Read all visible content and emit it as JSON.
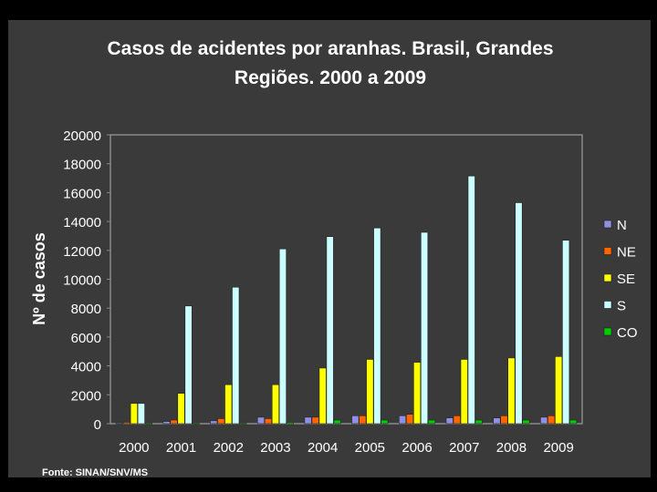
{
  "chart_data": {
    "type": "bar",
    "title_line1": "Casos de acidentes por aranhas. Brasil, Grandes",
    "title_line2": "Regiões. 2000 a 2009",
    "xlabel": "",
    "ylabel": "Nº de casos",
    "ylim": [
      0,
      20000
    ],
    "yticks": [
      "0",
      "2000",
      "4000",
      "6000",
      "8000",
      "10000",
      "12000",
      "14000",
      "16000",
      "18000",
      "20000"
    ],
    "grid": false,
    "legend_position": "right",
    "categories": [
      "2000",
      "2001",
      "2002",
      "2003",
      "2004",
      "2005",
      "2006",
      "2007",
      "2008",
      "2009"
    ],
    "series": [
      {
        "name": "N",
        "color": "#8f8fe6",
        "values": [
          50,
          150,
          200,
          450,
          450,
          550,
          550,
          400,
          400,
          450
        ]
      },
      {
        "name": "NE",
        "color": "#ff6600",
        "values": [
          100,
          250,
          350,
          350,
          450,
          550,
          650,
          550,
          550,
          550
        ]
      },
      {
        "name": "SE",
        "color": "#ffff00",
        "values": [
          1400,
          2100,
          2700,
          2700,
          3850,
          4450,
          4250,
          4450,
          4550,
          4650
        ]
      },
      {
        "name": "S",
        "color": "#ccffff",
        "values": [
          1400,
          8150,
          9450,
          12100,
          12950,
          13550,
          13250,
          17150,
          15300,
          12700
        ]
      },
      {
        "name": "CO",
        "color": "#00cc00",
        "values": [
          50,
          50,
          50,
          100,
          250,
          250,
          250,
          250,
          250,
          250
        ]
      }
    ]
  },
  "source_text": "Fonte: SINAN/SNV/MS"
}
